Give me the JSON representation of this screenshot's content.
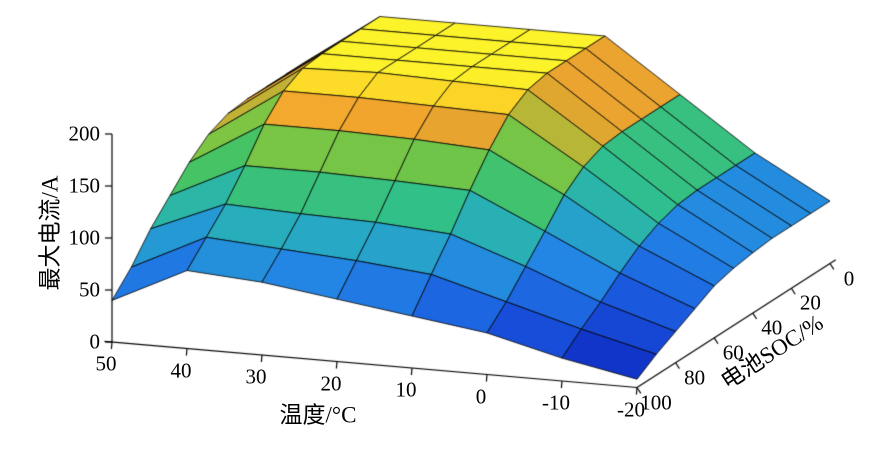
{
  "chart_data": {
    "type": "surface",
    "title": "",
    "xlabel": "温度/°C",
    "ylabel": "电池SOC/%",
    "zlabel": "最大电流/A",
    "x_temps": [
      50,
      40,
      30,
      20,
      10,
      0,
      -10,
      -20
    ],
    "y_socs": [
      100,
      90,
      80,
      70,
      60,
      50,
      40,
      30,
      20,
      10,
      0
    ],
    "x_tick_labels": [
      "50",
      "40",
      "30",
      "20",
      "10",
      "0",
      "-10",
      "-20"
    ],
    "y_tick_labels": [
      "100",
      "80",
      "60",
      "40",
      "20",
      "0"
    ],
    "z_ticks": [
      0,
      50,
      100,
      150,
      200
    ],
    "z_tick_labels": [
      "0",
      "50",
      "100",
      "150",
      "200"
    ],
    "zlim": [
      0,
      200
    ],
    "grid": "mesh",
    "legend": "none",
    "background": "#ffffff",
    "edge_color": "#000000",
    "colormap": [
      [
        0.0,
        "#0a16a0"
      ],
      [
        0.12,
        "#1238cc"
      ],
      [
        0.25,
        "#1b5ce0"
      ],
      [
        0.38,
        "#2386e4"
      ],
      [
        0.5,
        "#27aac4"
      ],
      [
        0.6,
        "#2fbf8f"
      ],
      [
        0.7,
        "#4ec455"
      ],
      [
        0.8,
        "#8cc53e"
      ],
      [
        0.88,
        "#f0a22e"
      ],
      [
        0.94,
        "#fbc926"
      ],
      [
        1.0,
        "#fdf32b"
      ]
    ],
    "z_values": [
      [
        40,
        75,
        70,
        60,
        50,
        40,
        22,
        8
      ],
      [
        60,
        95,
        90,
        85,
        78,
        58,
        38,
        20
      ],
      [
        85,
        115,
        112,
        110,
        105,
        80,
        52,
        30
      ],
      [
        105,
        140,
        140,
        138,
        135,
        102,
        68,
        40
      ],
      [
        125,
        168,
        168,
        166,
        162,
        125,
        82,
        50
      ],
      [
        140,
        188,
        188,
        186,
        184,
        140,
        92,
        55
      ],
      [
        148,
        198,
        200,
        198,
        196,
        148,
        98,
        58
      ],
      [
        150,
        200,
        200,
        200,
        200,
        150,
        100,
        60
      ],
      [
        150,
        200,
        200,
        200,
        200,
        150,
        100,
        60
      ],
      [
        150,
        200,
        200,
        200,
        200,
        150,
        100,
        60
      ],
      [
        150,
        200,
        200,
        200,
        200,
        150,
        100,
        60
      ]
    ]
  }
}
